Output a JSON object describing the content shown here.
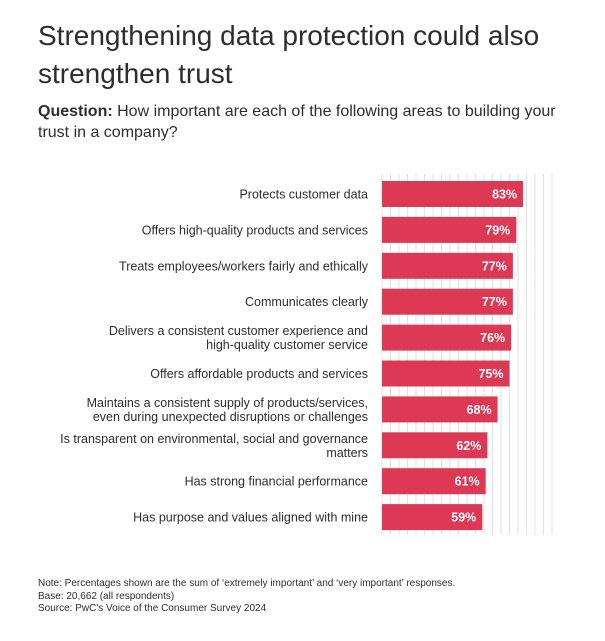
{
  "title": "Strengthening data protection could also strengthen trust",
  "question": {
    "label": "Question:",
    "text": "How important are each of the following areas to building your trust in a company?"
  },
  "chart_data": {
    "type": "bar",
    "orientation": "horizontal",
    "bar_color": "#dd3955",
    "categories": [
      [
        "Protects customer data"
      ],
      [
        "Offers high-quality products and services"
      ],
      [
        "Treats employees/workers fairly and ethically"
      ],
      [
        "Communicates clearly"
      ],
      [
        "Delivers a consistent customer experience and",
        "high-quality customer service"
      ],
      [
        "Offers affordable products and services"
      ],
      [
        "Maintains a consistent supply of products/services,",
        "even during unexpected disruptions or challenges"
      ],
      [
        "Is transparent on environmental, social and governance",
        "matters"
      ],
      [
        "Has strong financial performance"
      ],
      [
        "Has purpose and values aligned with mine"
      ]
    ],
    "values": [
      83,
      79,
      77,
      77,
      76,
      75,
      68,
      62,
      61,
      59
    ],
    "value_labels": [
      "83%",
      "79%",
      "77%",
      "77%",
      "76%",
      "75%",
      "68%",
      "62%",
      "61%",
      "59%"
    ],
    "xlim": [
      0,
      100
    ],
    "grid": true
  },
  "notes": {
    "line1": "Note: Percentages shown are the sum of ‘extremely important’ and ‘very important’ responses.",
    "line2": "Base: 20,662 (all respondents)",
    "line3": "Source: PwC's Voice of the Consumer Survey 2024"
  }
}
